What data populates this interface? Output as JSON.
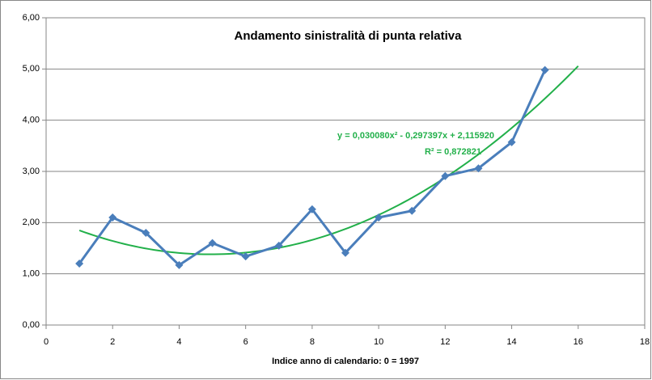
{
  "chart_data": {
    "type": "line",
    "title": "Andamento sinistralità di punta relativa",
    "x_label": "Indice anno  di calendario:  0 = 1997",
    "x": [
      1,
      2,
      3,
      4,
      5,
      6,
      7,
      8,
      9,
      10,
      11,
      12,
      13,
      14,
      15
    ],
    "series": [
      {
        "color": "#4a7ebb",
        "values": [
          1.2,
          2.1,
          1.8,
          1.17,
          1.6,
          1.34,
          1.55,
          2.26,
          1.41,
          2.1,
          2.23,
          2.91,
          3.06,
          3.57,
          4.98
        ]
      }
    ],
    "trendline": {
      "color": "#22b04a",
      "coefficients": [
        0.03008,
        -0.297397,
        2.11592
      ],
      "x_range": [
        1,
        16
      ],
      "label": "y = 0,030080x² - 0,297397x + 2,115920",
      "r2_label": "R² = 0,872821"
    },
    "xlim": [
      0,
      18
    ],
    "xticks": [
      0,
      2,
      4,
      6,
      8,
      10,
      12,
      14,
      16,
      18
    ],
    "ylim": [
      0,
      6
    ],
    "yticks": [
      {
        "value": 0,
        "label": "0,00"
      },
      {
        "value": 1,
        "label": "1,00"
      },
      {
        "value": 2,
        "label": "2,00"
      },
      {
        "value": 3,
        "label": "3,00"
      },
      {
        "value": 4,
        "label": "4,00"
      },
      {
        "value": 5,
        "label": "5,00"
      },
      {
        "value": 6,
        "label": "6,00"
      }
    ],
    "grid": true
  }
}
